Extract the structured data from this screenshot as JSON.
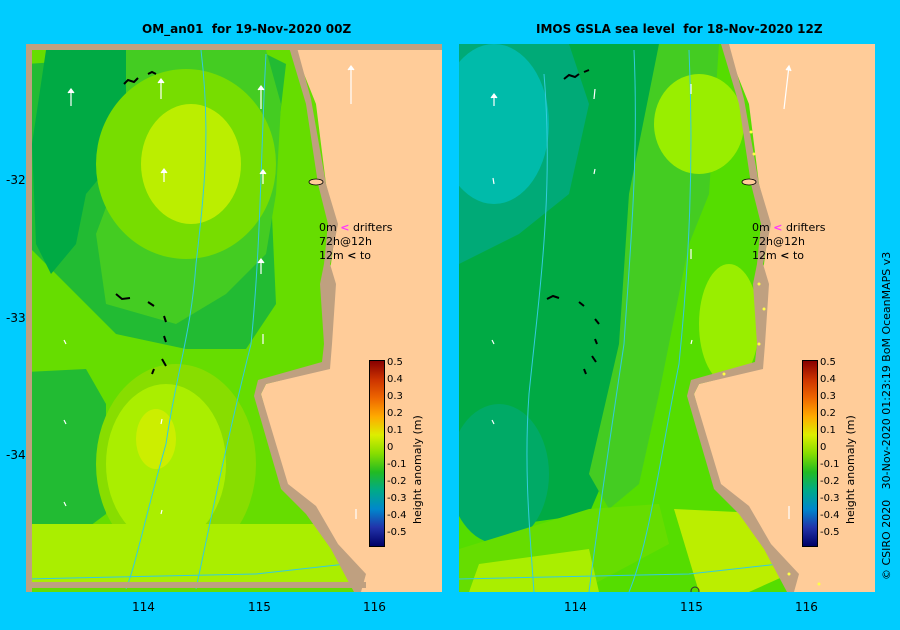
{
  "left_panel": {
    "title": "OM_an01  for 19-Nov-2020 00Z"
  },
  "right_panel": {
    "title": "IMOS GSLA sea level  for 18-Nov-2020 12Z"
  },
  "x_ticks": [
    "114",
    "115",
    "116"
  ],
  "y_ticks": [
    "-32",
    "-33",
    "-34"
  ],
  "drifter_legend": {
    "line1_prefix": "0m",
    "line1_text": "drifters 72h@12h",
    "line2_prefix": "12m",
    "line2_text": "to"
  },
  "colorbar": {
    "label": "height anomaly (m)",
    "ticks": [
      "0.5",
      "0.4",
      "0.3",
      "0.2",
      "0.1",
      "0",
      "-0.1",
      "-0.2",
      "-0.3",
      "-0.4",
      "-0.5"
    ]
  },
  "credit": "© CSIRO 2020   30-Nov-2020 01:23:19 BoM OceanMAPS v3",
  "colors": {
    "land": "#ffcc99",
    "coast": "#bfa080",
    "background": "#00ccff",
    "contour": "#33ccdd",
    "drifter_0m": "#ff33ff"
  },
  "chart_data": {
    "type": "heatmap",
    "x_axis": {
      "ticks": [
        114,
        115,
        116
      ],
      "range": [
        113.0,
        116.6
      ]
    },
    "y_axis": {
      "ticks": [
        -32,
        -33,
        -34
      ],
      "range": [
        -35.0,
        -31.0
      ]
    },
    "colorbar_range": [
      -0.5,
      0.5
    ],
    "panels": [
      {
        "title": "OM_an01  for 19-Nov-2020 00Z",
        "highs_m": [
          0.1,
          0.1,
          0.05
        ],
        "lows_m": [
          -0.1,
          -0.05
        ]
      },
      {
        "title": "IMOS GSLA sea level  for 18-Nov-2020 12Z",
        "highs_m": [
          0.1,
          0.05
        ],
        "lows_m": [
          -0.2,
          -0.15
        ]
      }
    ]
  }
}
